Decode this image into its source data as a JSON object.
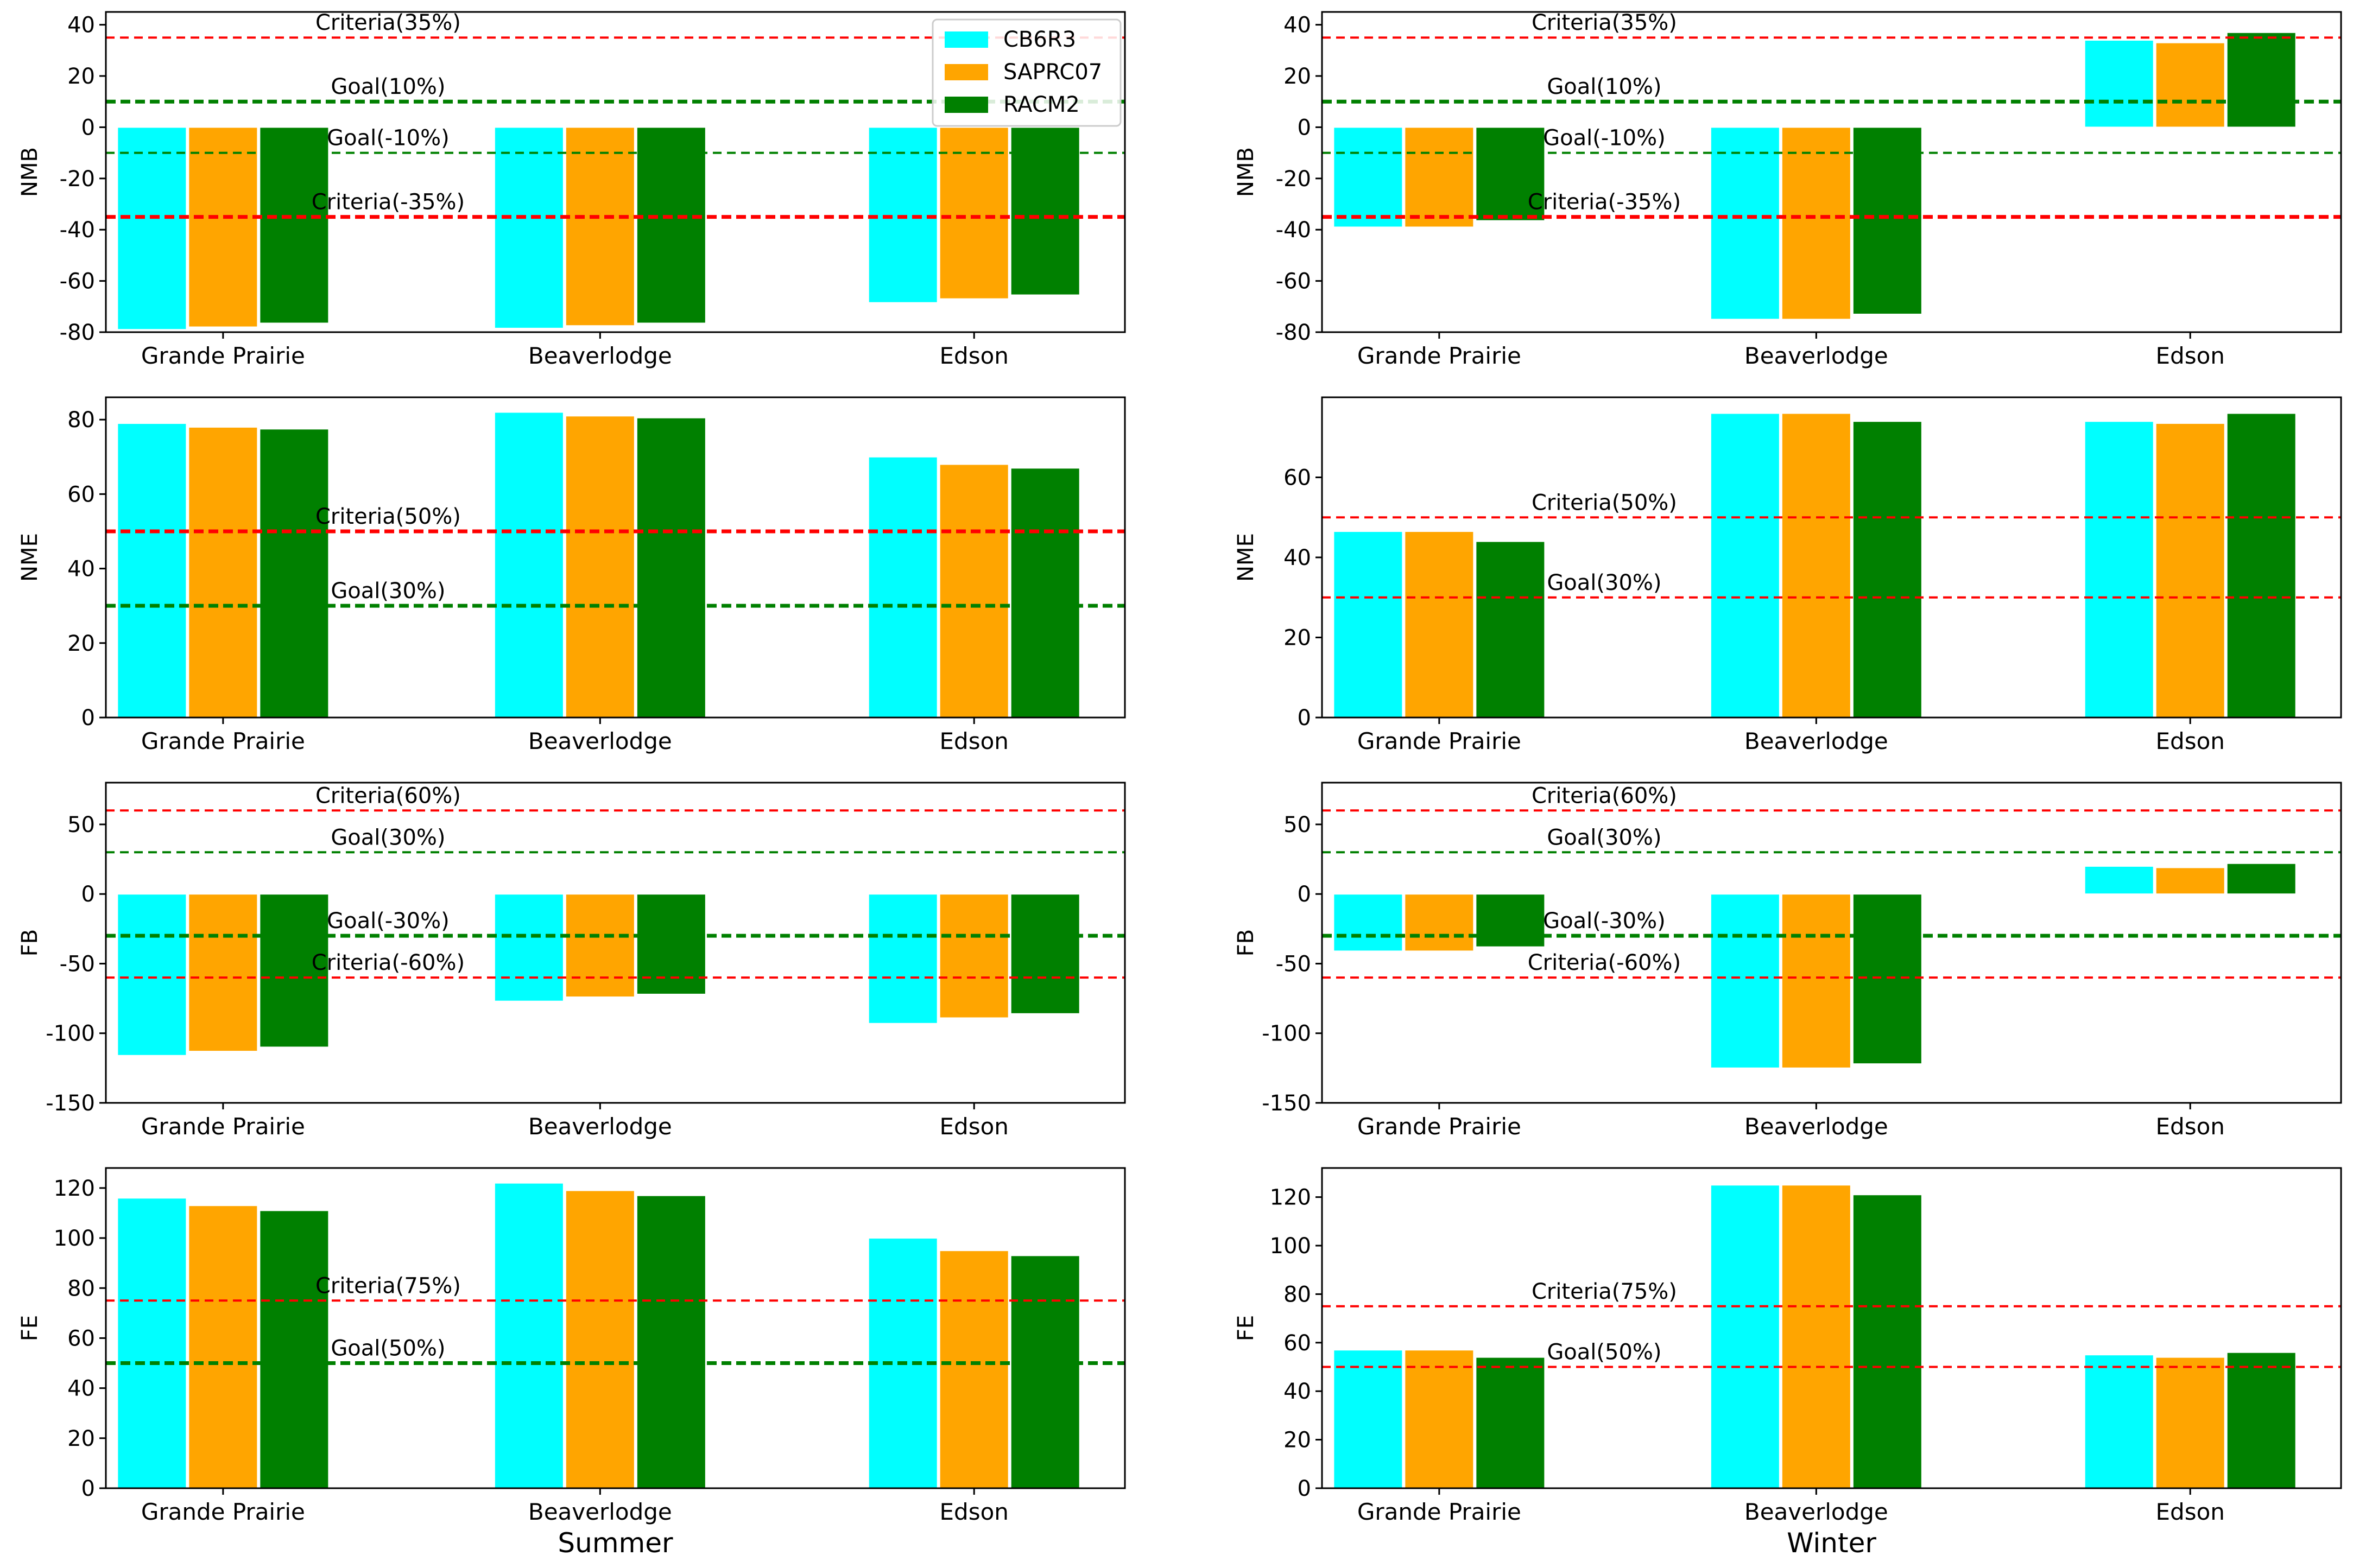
{
  "chart_data": {
    "type": "bar",
    "categories": [
      "Grande Prairie",
      "Beaverlodge",
      "Edson"
    ],
    "legend": [
      {
        "name": "CB6R3",
        "color": "#00ffff"
      },
      {
        "name": "SAPRC07",
        "color": "#ffa500"
      },
      {
        "name": "RACM2",
        "color": "#008000"
      }
    ],
    "legend_placement": "top-right of first panel",
    "columns": [
      {
        "season": "Summer"
      },
      {
        "season": "Winter"
      }
    ],
    "panels": [
      {
        "id": "summer-nmb",
        "season": "Summer",
        "ylabel": "NMB",
        "ylim": [
          -80,
          45
        ],
        "yticks": [
          -80,
          -60,
          -40,
          -20,
          0,
          20,
          40
        ],
        "series": [
          {
            "name": "CB6R3",
            "values": [
              -79,
              -78.5,
              -68.5
            ]
          },
          {
            "name": "SAPRC07",
            "values": [
              -78,
              -77.5,
              -67
            ]
          },
          {
            "name": "RACM2",
            "values": [
              -76.5,
              -76.5,
              -65.5
            ]
          }
        ],
        "refs": [
          {
            "label": "Criteria(35%)",
            "value": 35,
            "color": "#ff0000",
            "bold": false
          },
          {
            "label": "Goal(10%)",
            "value": 10,
            "color": "#008000",
            "bold": true
          },
          {
            "label": "Goal(-10%)",
            "value": -10,
            "color": "#008000",
            "bold": false
          },
          {
            "label": "Criteria(-35%)",
            "value": -35,
            "color": "#ff0000",
            "bold": true
          }
        ]
      },
      {
        "id": "winter-nmb",
        "season": "Winter",
        "ylabel": "NMB",
        "ylim": [
          -80,
          45
        ],
        "yticks": [
          -80,
          -60,
          -40,
          -20,
          0,
          20,
          40
        ],
        "series": [
          {
            "name": "CB6R3",
            "values": [
              -39,
              -75,
              34
            ]
          },
          {
            "name": "SAPRC07",
            "values": [
              -39,
              -75,
              33
            ]
          },
          {
            "name": "RACM2",
            "values": [
              -36.5,
              -73,
              37
            ]
          }
        ],
        "refs": [
          {
            "label": "Criteria(35%)",
            "value": 35,
            "color": "#ff0000",
            "bold": false
          },
          {
            "label": "Goal(10%)",
            "value": 10,
            "color": "#008000",
            "bold": true
          },
          {
            "label": "Goal(-10%)",
            "value": -10,
            "color": "#008000",
            "bold": false
          },
          {
            "label": "Criteria(-35%)",
            "value": -35,
            "color": "#ff0000",
            "bold": true
          }
        ]
      },
      {
        "id": "summer-nme",
        "season": "Summer",
        "ylabel": "NME",
        "ylim": [
          0,
          86
        ],
        "yticks": [
          0,
          20,
          40,
          60,
          80
        ],
        "series": [
          {
            "name": "CB6R3",
            "values": [
              79,
              82,
              70
            ]
          },
          {
            "name": "SAPRC07",
            "values": [
              78,
              81,
              68
            ]
          },
          {
            "name": "RACM2",
            "values": [
              77.5,
              80.5,
              67
            ]
          }
        ],
        "refs": [
          {
            "label": "Criteria(50%)",
            "value": 50,
            "color": "#ff0000",
            "bold": true
          },
          {
            "label": "Goal(30%)",
            "value": 30,
            "color": "#008000",
            "bold": true
          }
        ]
      },
      {
        "id": "winter-nme",
        "season": "Winter",
        "ylabel": "NME",
        "ylim": [
          0,
          80
        ],
        "yticks": [
          0,
          20,
          40,
          60
        ],
        "series": [
          {
            "name": "CB6R3",
            "values": [
              46.5,
              76,
              74
            ]
          },
          {
            "name": "SAPRC07",
            "values": [
              46.5,
              76,
              73.5
            ]
          },
          {
            "name": "RACM2",
            "values": [
              44,
              74,
              76
            ]
          }
        ],
        "refs": [
          {
            "label": "Criteria(50%)",
            "value": 50,
            "color": "#ff0000",
            "bold": false
          },
          {
            "label": "Goal(30%)",
            "value": 30,
            "color": "#ff0000",
            "bold": false
          }
        ]
      },
      {
        "id": "summer-fb",
        "season": "Summer",
        "ylabel": "FB",
        "ylim": [
          -150,
          80
        ],
        "yticks": [
          -150,
          -100,
          -50,
          0,
          50
        ],
        "series": [
          {
            "name": "CB6R3",
            "values": [
              -116,
              -77,
              -93
            ]
          },
          {
            "name": "SAPRC07",
            "values": [
              -113,
              -74,
              -89
            ]
          },
          {
            "name": "RACM2",
            "values": [
              -110,
              -72,
              -86
            ]
          }
        ],
        "refs": [
          {
            "label": "Criteria(60%)",
            "value": 60,
            "color": "#ff0000",
            "bold": false
          },
          {
            "label": "Goal(30%)",
            "value": 30,
            "color": "#008000",
            "bold": false
          },
          {
            "label": "Goal(-30%)",
            "value": -30,
            "color": "#008000",
            "bold": true
          },
          {
            "label": "Criteria(-60%)",
            "value": -60,
            "color": "#ff0000",
            "bold": false
          }
        ]
      },
      {
        "id": "winter-fb",
        "season": "Winter",
        "ylabel": "FB",
        "ylim": [
          -150,
          80
        ],
        "yticks": [
          -150,
          -100,
          -50,
          0,
          50
        ],
        "series": [
          {
            "name": "CB6R3",
            "values": [
              -41,
              -125,
              20
            ]
          },
          {
            "name": "SAPRC07",
            "values": [
              -41,
              -125,
              19
            ]
          },
          {
            "name": "RACM2",
            "values": [
              -38,
              -122,
              22
            ]
          }
        ],
        "refs": [
          {
            "label": "Criteria(60%)",
            "value": 60,
            "color": "#ff0000",
            "bold": false
          },
          {
            "label": "Goal(30%)",
            "value": 30,
            "color": "#008000",
            "bold": false
          },
          {
            "label": "Goal(-30%)",
            "value": -30,
            "color": "#008000",
            "bold": true
          },
          {
            "label": "Criteria(-60%)",
            "value": -60,
            "color": "#ff0000",
            "bold": false
          }
        ]
      },
      {
        "id": "summer-fe",
        "season": "Summer",
        "ylabel": "FE",
        "ylim": [
          0,
          128
        ],
        "yticks": [
          0,
          20,
          40,
          60,
          80,
          100,
          120
        ],
        "series": [
          {
            "name": "CB6R3",
            "values": [
              116,
              122,
              100
            ]
          },
          {
            "name": "SAPRC07",
            "values": [
              113,
              119,
              95
            ]
          },
          {
            "name": "RACM2",
            "values": [
              111,
              117,
              93
            ]
          }
        ],
        "refs": [
          {
            "label": "Criteria(75%)",
            "value": 75,
            "color": "#ff0000",
            "bold": false
          },
          {
            "label": "Goal(50%)",
            "value": 50,
            "color": "#008000",
            "bold": true
          }
        ]
      },
      {
        "id": "winter-fe",
        "season": "Winter",
        "ylabel": "FE",
        "ylim": [
          0,
          132
        ],
        "yticks": [
          0,
          20,
          40,
          60,
          80,
          100,
          120
        ],
        "series": [
          {
            "name": "CB6R3",
            "values": [
              57,
              125,
              55
            ]
          },
          {
            "name": "SAPRC07",
            "values": [
              57,
              125,
              54
            ]
          },
          {
            "name": "RACM2",
            "values": [
              54,
              121,
              56
            ]
          }
        ],
        "refs": [
          {
            "label": "Criteria(75%)",
            "value": 75,
            "color": "#ff0000",
            "bold": false
          },
          {
            "label": "Goal(50%)",
            "value": 50,
            "color": "#ff0000",
            "bold": false
          }
        ]
      }
    ]
  }
}
